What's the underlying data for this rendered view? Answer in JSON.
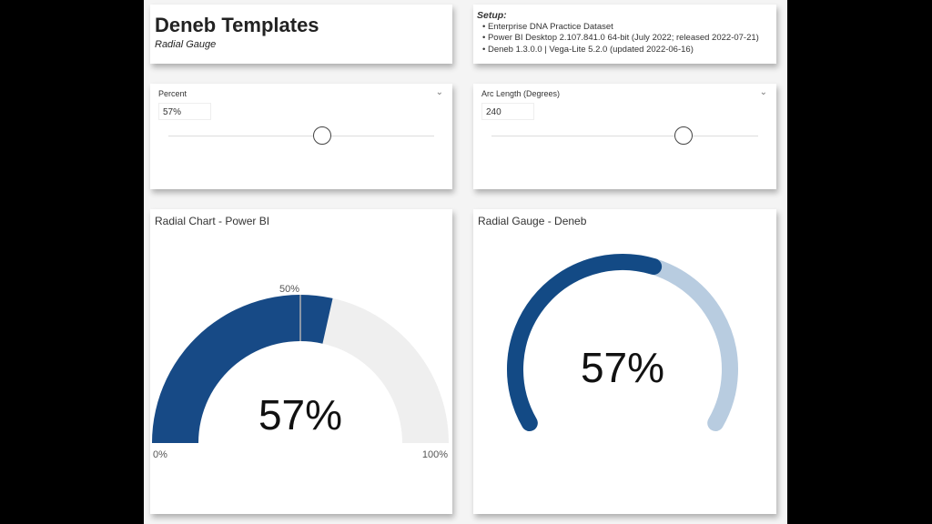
{
  "header": {
    "title": "Deneb Templates",
    "subtitle": "Radial Gauge"
  },
  "setup": {
    "heading": "Setup:",
    "items": [
      "Enterprise DNA Practice Dataset",
      "Power BI Desktop 2.107.841.0 64-bit (July 2022; released 2022-07-21)",
      "Deneb 1.3.0.0 | Vega-Lite 5.2.0 (updated 2022-06-16)"
    ]
  },
  "slicers": [
    {
      "label": "Percent",
      "value": "57%",
      "slider_fraction": 0.58
    },
    {
      "label": "Arc Length (Degrees)",
      "value": "240",
      "slider_fraction": 0.72
    }
  ],
  "chart_data": [
    {
      "type": "gauge",
      "title": "Radial Chart - Power BI",
      "value": 57,
      "min_label": "0%",
      "max_label": "100%",
      "target_label": "50%",
      "target": 50,
      "value_label": "57%",
      "colors": {
        "fill": "#174a86",
        "track": "#efefef",
        "target": "#b0b0b0"
      }
    },
    {
      "type": "gauge",
      "title": "Radial Gauge - Deneb",
      "value": 57,
      "arc_degrees": 240,
      "value_label": "57%",
      "colors": {
        "fill": "#134a85",
        "track": "#b8cce0"
      }
    }
  ]
}
